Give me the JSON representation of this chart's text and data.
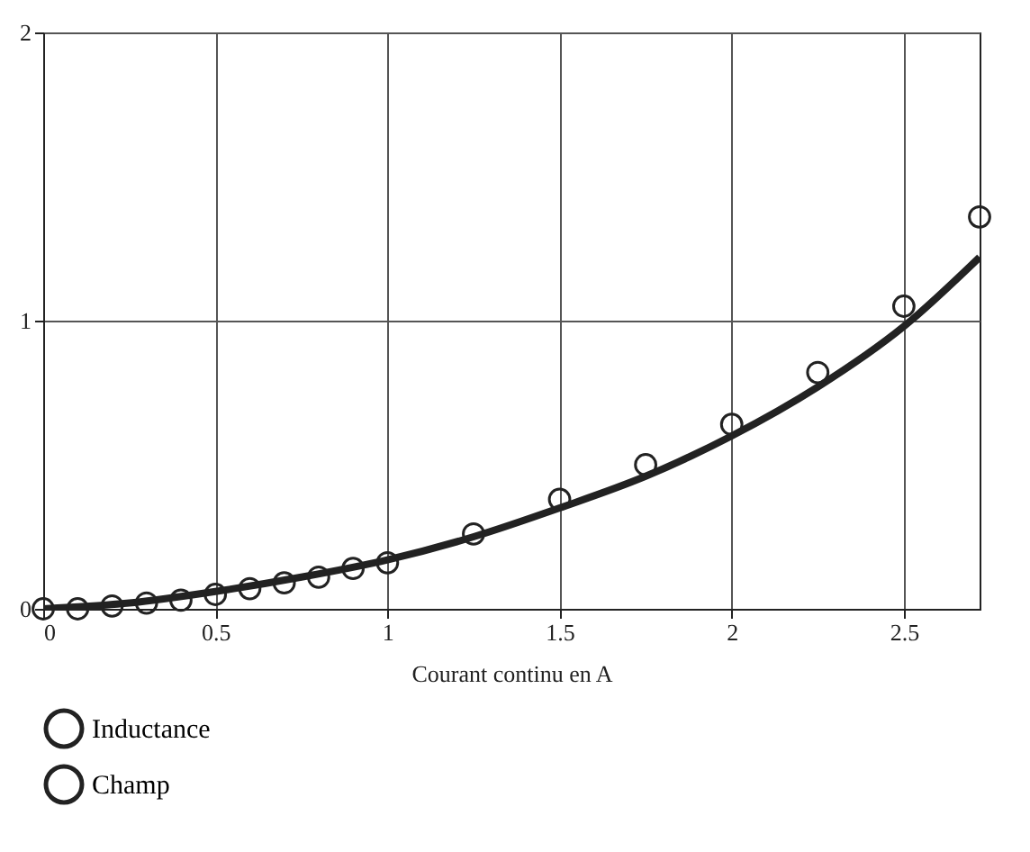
{
  "chart_data": {
    "type": "line",
    "xlabel": "Courant continu en A",
    "xlim": [
      0,
      2.72
    ],
    "xticks": [
      0,
      0.5,
      1,
      1.5,
      2,
      2.5
    ],
    "ylim": [
      0,
      2
    ],
    "yticks": [
      0,
      1,
      2
    ],
    "grid": true,
    "legend": "bottom left",
    "series": [
      {
        "name": "Inductance",
        "color": "#222222",
        "x": [
          0,
          0.25,
          0.5,
          0.75,
          1,
          1.25,
          1.5,
          1.75,
          2,
          2.25,
          2.5,
          2.72
        ],
        "values": [
          0,
          0.02,
          0.06,
          0.11,
          0.17,
          0.25,
          0.35,
          0.46,
          0.6,
          0.77,
          0.98,
          1.22
        ]
      },
      {
        "name": "Champ",
        "type": "scatter",
        "marker": "circle",
        "color": "#222222",
        "x": [
          0,
          0.1,
          0.2,
          0.3,
          0.4,
          0.5,
          0.6,
          0.7,
          0.8,
          0.9,
          1,
          1.25,
          1.5,
          1.75,
          2,
          2.25,
          2.5,
          2.72
        ],
        "values": [
          0,
          0,
          0.01,
          0.02,
          0.03,
          0.05,
          0.07,
          0.09,
          0.11,
          0.14,
          0.16,
          0.26,
          0.38,
          0.5,
          0.64,
          0.82,
          1.05,
          1.36
        ]
      }
    ]
  }
}
